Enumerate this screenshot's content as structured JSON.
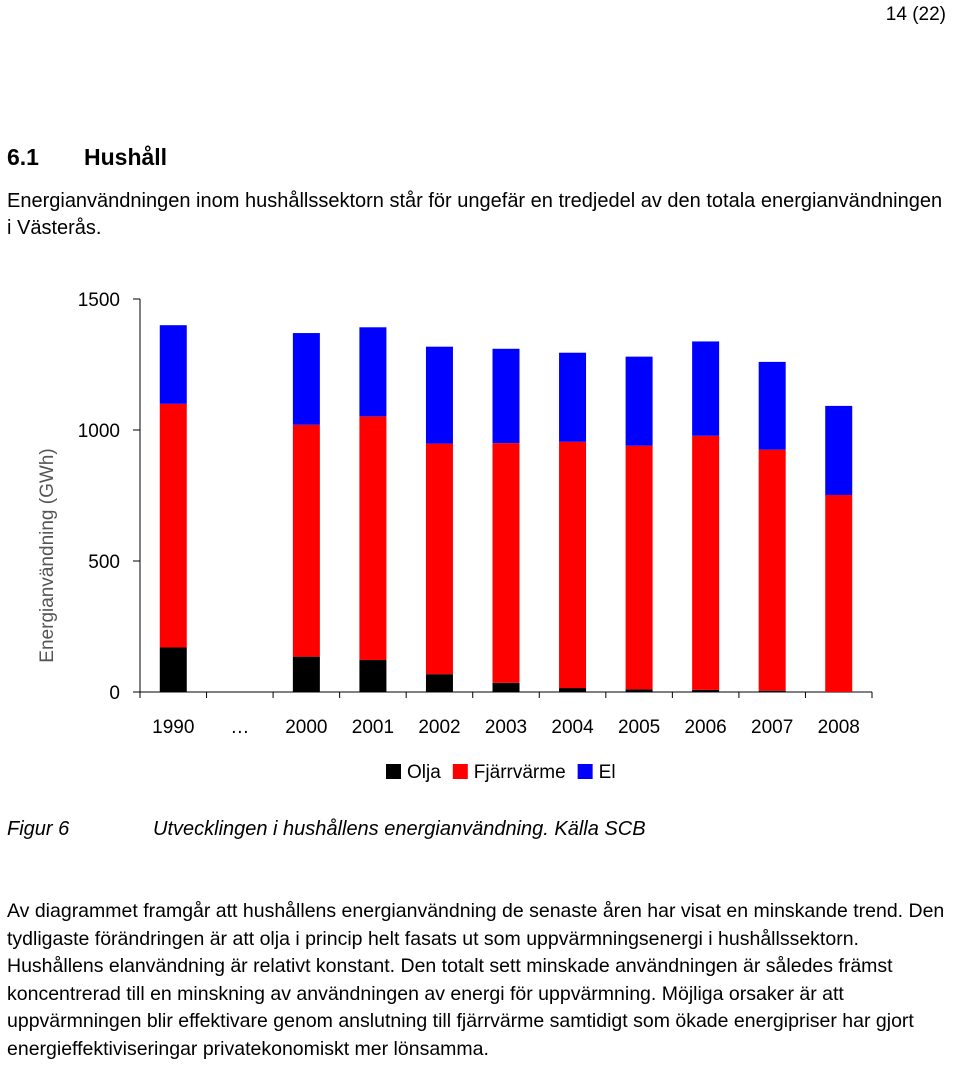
{
  "page_number": "14 (22)",
  "section": {
    "number": "6.1",
    "title": "Hushåll"
  },
  "intro": "Energianvändningen inom hushållssektorn står för ungefär en tredjedel av den totala energianvändningen i Västerås.",
  "figure": {
    "label": "Figur 6",
    "caption": "Utvecklingen i hushållens energianvändning. Källa SCB"
  },
  "body": "Av diagrammet framgår att hushållens energianvändning de senaste åren har visat en minskande trend. Den tydligaste förändringen är att olja i princip helt fasats ut som uppvärmningsenergi i hushållssektorn. Hushållens elanvändning är relativt konstant. Den totalt sett minskade användningen är således främst koncentrerad till en minskning av användningen av energi för uppvärmning. Möjliga orsaker är att uppvärmningen blir effektivare genom anslutning till fjärrvärme samtidigt som ökade energipriser har gjort energieffektiviseringar privatekonomiskt mer lönsamma.",
  "chart_data": {
    "type": "bar",
    "stacked": true,
    "ylabel": "Energianvändning (GWh)",
    "xlabel": "",
    "ylim": [
      0,
      1500
    ],
    "yticks": [
      0,
      500,
      1000,
      1500
    ],
    "grid": false,
    "legend_position": "bottom",
    "categories": [
      "1990",
      "…",
      "2000",
      "2001",
      "2002",
      "2003",
      "2004",
      "2005",
      "2006",
      "2007",
      "2008"
    ],
    "series": [
      {
        "name": "Olja",
        "color": "#000000",
        "values": [
          170,
          null,
          135,
          122,
          68,
          35,
          15,
          10,
          8,
          5,
          0
        ]
      },
      {
        "name": "Fjärrvärme",
        "color": "#ff0000",
        "values": [
          930,
          null,
          885,
          930,
          880,
          915,
          940,
          930,
          970,
          920,
          752
        ]
      },
      {
        "name": "El",
        "color": "#0000ff",
        "values": [
          300,
          null,
          350,
          340,
          370,
          360,
          340,
          340,
          360,
          335,
          340
        ]
      }
    ]
  }
}
